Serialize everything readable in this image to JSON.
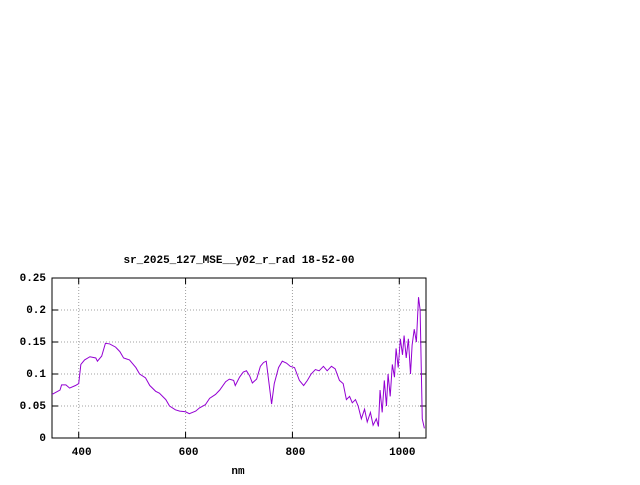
{
  "chart_data": {
    "type": "line",
    "title": "sr_2025_127_MSE__y02_r_rad 18-52-00",
    "x_label": "nm",
    "xlim": [
      350,
      1050
    ],
    "ylim": [
      0,
      0.25
    ],
    "xticks": [
      400,
      600,
      800,
      1000
    ],
    "yticks": [
      0,
      0.05,
      0.1,
      0.15,
      0.2,
      0.25
    ],
    "grid": true,
    "x": [
      350,
      365,
      368,
      376,
      383,
      394,
      400,
      404,
      411,
      421,
      432,
      435,
      443,
      450,
      458,
      469,
      477,
      484,
      495,
      507,
      514,
      525,
      533,
      544,
      551,
      563,
      570,
      581,
      589,
      600,
      607,
      619,
      626,
      637,
      645,
      656,
      664,
      675,
      682,
      690,
      693,
      701,
      708,
      714,
      720,
      725,
      733,
      740,
      746,
      751,
      757,
      761,
      766,
      774,
      781,
      789,
      796,
      804,
      813,
      821,
      828,
      835,
      843,
      850,
      858,
      865,
      873,
      880,
      888,
      895,
      901,
      907,
      912,
      918,
      923,
      929,
      935,
      940,
      946,
      951,
      957,
      961,
      964,
      968,
      972,
      976,
      979,
      983,
      987,
      991,
      994,
      998,
      1002,
      1006,
      1009,
      1013,
      1017,
      1021,
      1024,
      1028,
      1032,
      1036,
      1039,
      1043,
      1047
    ],
    "series": [
      {
        "color": "#9400d3",
        "values": [
          0.068,
          0.075,
          0.083,
          0.083,
          0.078,
          0.082,
          0.085,
          0.115,
          0.122,
          0.127,
          0.125,
          0.12,
          0.128,
          0.148,
          0.147,
          0.142,
          0.135,
          0.125,
          0.122,
          0.11,
          0.1,
          0.094,
          0.082,
          0.073,
          0.07,
          0.06,
          0.05,
          0.044,
          0.042,
          0.041,
          0.038,
          0.042,
          0.047,
          0.052,
          0.062,
          0.068,
          0.075,
          0.088,
          0.092,
          0.09,
          0.082,
          0.095,
          0.103,
          0.105,
          0.097,
          0.086,
          0.092,
          0.112,
          0.118,
          0.12,
          0.08,
          0.053,
          0.085,
          0.11,
          0.12,
          0.117,
          0.112,
          0.11,
          0.09,
          0.082,
          0.09,
          0.1,
          0.107,
          0.105,
          0.112,
          0.105,
          0.112,
          0.108,
          0.09,
          0.085,
          0.06,
          0.065,
          0.055,
          0.06,
          0.05,
          0.03,
          0.045,
          0.025,
          0.04,
          0.02,
          0.03,
          0.018,
          0.075,
          0.04,
          0.09,
          0.05,
          0.1,
          0.065,
          0.115,
          0.095,
          0.14,
          0.11,
          0.155,
          0.13,
          0.16,
          0.125,
          0.155,
          0.1,
          0.145,
          0.17,
          0.15,
          0.22,
          0.2,
          0.03,
          0.015
        ]
      }
    ]
  }
}
